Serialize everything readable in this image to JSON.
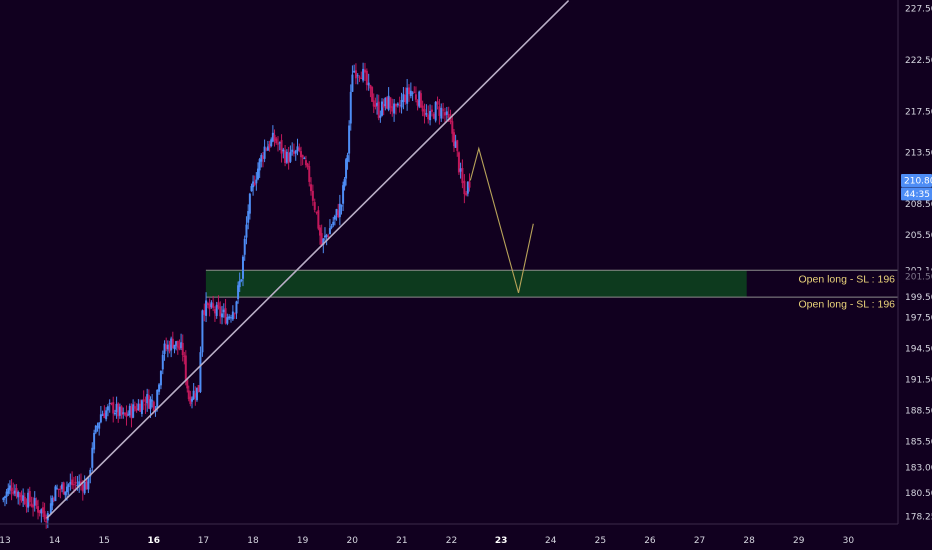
{
  "chart_data": {
    "type": "candlestick",
    "title": "",
    "xlabel": "",
    "ylabel": "",
    "ylim": [
      177.5,
      228.3
    ],
    "xlim": [
      12.9,
      31.0
    ],
    "grid": false,
    "legend": "none",
    "x_ticks": [
      {
        "value": 13,
        "label": "13",
        "bold": false
      },
      {
        "value": 14,
        "label": "14",
        "bold": false
      },
      {
        "value": 15,
        "label": "15",
        "bold": false
      },
      {
        "value": 16,
        "label": "16",
        "bold": true
      },
      {
        "value": 17,
        "label": "17",
        "bold": false
      },
      {
        "value": 18,
        "label": "18",
        "bold": false
      },
      {
        "value": 19,
        "label": "19",
        "bold": false
      },
      {
        "value": 20,
        "label": "20",
        "bold": false
      },
      {
        "value": 21,
        "label": "21",
        "bold": false
      },
      {
        "value": 22,
        "label": "22",
        "bold": false
      },
      {
        "value": 23,
        "label": "23",
        "bold": true
      },
      {
        "value": 24,
        "label": "24",
        "bold": false
      },
      {
        "value": 25,
        "label": "25",
        "bold": false
      },
      {
        "value": 26,
        "label": "26",
        "bold": false
      },
      {
        "value": 27,
        "label": "27",
        "bold": false
      },
      {
        "value": 28,
        "label": "28",
        "bold": false
      },
      {
        "value": 29,
        "label": "29",
        "bold": false
      },
      {
        "value": 30,
        "label": "30",
        "bold": false
      }
    ],
    "y_ticks": [
      {
        "value": 227.5,
        "label": "227.50"
      },
      {
        "value": 222.5,
        "label": "222.50"
      },
      {
        "value": 217.5,
        "label": "217.50"
      },
      {
        "value": 213.5,
        "label": "213.50"
      },
      {
        "value": 208.5,
        "label": "208.50"
      },
      {
        "value": 205.5,
        "label": "205.50"
      },
      {
        "value": 197.5,
        "label": "197.50"
      },
      {
        "value": 194.5,
        "label": "194.50"
      },
      {
        "value": 191.5,
        "label": "191.50"
      },
      {
        "value": 188.5,
        "label": "188.50"
      },
      {
        "value": 185.5,
        "label": "185.50"
      },
      {
        "value": 183.0,
        "label": "183.00"
      },
      {
        "value": 180.5,
        "label": "180.50"
      },
      {
        "value": 178.25,
        "label": "178.25"
      }
    ],
    "colors": {
      "background": "#11001f",
      "up": "#4e8df5",
      "down": "#c2185b",
      "trendline": "#b9aec6",
      "zone_fill": "#0d3a1e",
      "zone_border": "#8c8c8c",
      "projection": "#b8a35a",
      "zone_label": "#e9d27a",
      "price_badge": "#4e8df5"
    },
    "candles_anchors": [
      [
        12.95,
        179.8
      ],
      [
        13.15,
        181.2
      ],
      [
        13.35,
        180.2
      ],
      [
        13.55,
        179.6
      ],
      [
        13.75,
        178.8
      ],
      [
        13.88,
        178.3
      ],
      [
        14.0,
        180.6
      ],
      [
        14.3,
        181.3
      ],
      [
        14.55,
        181.4
      ],
      [
        14.7,
        181.3
      ],
      [
        14.78,
        185.2
      ],
      [
        14.95,
        188.2
      ],
      [
        15.2,
        188.8
      ],
      [
        15.4,
        187.8
      ],
      [
        15.6,
        188.6
      ],
      [
        15.85,
        189.6
      ],
      [
        16.05,
        189.2
      ],
      [
        16.2,
        194.2
      ],
      [
        16.4,
        195.2
      ],
      [
        16.6,
        194.2
      ],
      [
        16.72,
        189.8
      ],
      [
        16.92,
        190.6
      ],
      [
        17.0,
        198.6
      ],
      [
        17.25,
        198.1
      ],
      [
        17.5,
        197.6
      ],
      [
        17.65,
        198.6
      ],
      [
        17.78,
        201.6
      ],
      [
        17.92,
        208.0
      ],
      [
        18.05,
        211.0
      ],
      [
        18.25,
        214.0
      ],
      [
        18.45,
        214.8
      ],
      [
        18.7,
        213.0
      ],
      [
        18.95,
        213.5
      ],
      [
        19.15,
        211.0
      ],
      [
        19.3,
        207.5
      ],
      [
        19.4,
        204.5
      ],
      [
        19.6,
        206.5
      ],
      [
        19.8,
        208.5
      ],
      [
        19.92,
        213.5
      ],
      [
        20.02,
        221.5
      ],
      [
        20.2,
        221.5
      ],
      [
        20.35,
        219.5
      ],
      [
        20.55,
        217.5
      ],
      [
        20.75,
        218.5
      ],
      [
        20.9,
        217.2
      ],
      [
        21.05,
        218.8
      ],
      [
        21.2,
        219.5
      ],
      [
        21.4,
        218.5
      ],
      [
        21.55,
        216.5
      ],
      [
        21.7,
        217.8
      ],
      [
        21.85,
        217.5
      ],
      [
        22.0,
        216.0
      ],
      [
        22.1,
        214.2
      ],
      [
        22.2,
        211.2
      ],
      [
        22.28,
        209.4
      ],
      [
        22.38,
        210.8
      ]
    ],
    "trendline": {
      "x1": 13.85,
      "y1": 178.1,
      "x2": 24.35,
      "y2": 228.2
    },
    "zone": {
      "x1": 17.05,
      "x2": 27.95,
      "y_top": 202.1,
      "y_bottom": 199.5
    },
    "projection_path": [
      [
        22.38,
        210.8
      ],
      [
        22.55,
        213.9
      ],
      [
        23.35,
        199.9
      ],
      [
        23.65,
        206.6
      ]
    ],
    "annotations": [
      {
        "label": "Open long - SL : 196",
        "y": 201.3
      },
      {
        "label": "Open long - SL : 196",
        "y": 198.9
      }
    ],
    "price_axis_labels": [
      {
        "label": "202.10",
        "value": 202.1,
        "style": "plain"
      },
      {
        "label": "201.50",
        "value": 201.5,
        "style": "faded"
      },
      {
        "label": "199.50",
        "value": 199.5,
        "style": "plain"
      },
      {
        "label": "210.80",
        "value": 210.8,
        "style": "badge"
      },
      {
        "label": "44:35",
        "value": 209.5,
        "style": "badge"
      }
    ]
  }
}
